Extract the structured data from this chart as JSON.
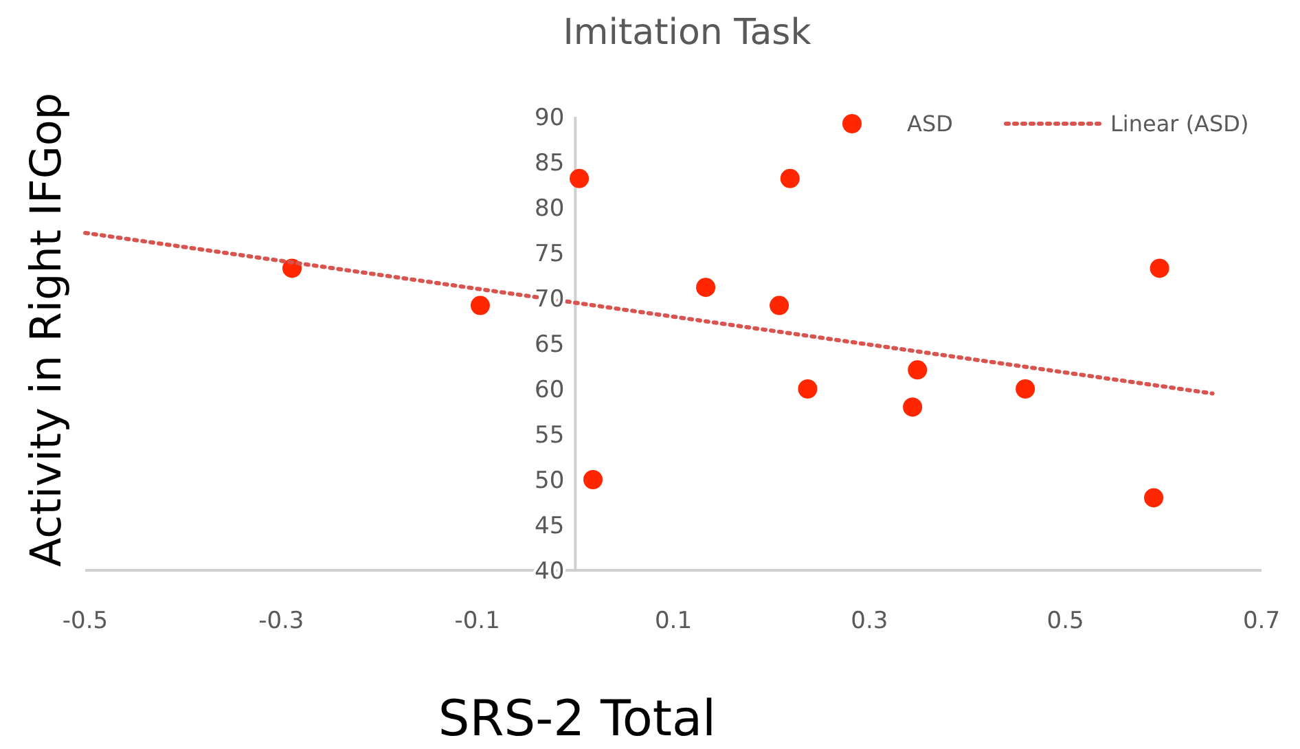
{
  "chart_data": {
    "type": "scatter",
    "title": "Imitation Task",
    "xlabel": "SRS-2 Total",
    "ylabel": "Activity in Right IFGop",
    "xlim": [
      -0.5,
      0.7
    ],
    "xticks": [
      -0.5,
      -0.3,
      -0.1,
      0.1,
      0.3,
      0.5,
      0.7
    ],
    "ylim": [
      40,
      90
    ],
    "yticks": [
      40,
      45,
      50,
      55,
      60,
      65,
      70,
      75,
      80,
      85,
      90
    ],
    "legend": "top right",
    "grid": false,
    "series": [
      {
        "name": "ASD",
        "color": "#ff2600",
        "marker": "circle",
        "x": [
          -0.289,
          -0.097,
          0.004,
          0.018,
          0.133,
          0.208,
          0.219,
          0.237,
          0.349,
          0.344,
          0.459,
          0.59,
          0.596
        ],
        "values": [
          73.3,
          69.2,
          83.2,
          50,
          71.2,
          69.2,
          83.2,
          60,
          62.1,
          58,
          60,
          48,
          73.3
        ]
      },
      {
        "name": "Linear (ASD)",
        "type": "line",
        "color": "#d9534f",
        "line_style": "dotted",
        "marker": "none",
        "x": [
          -0.5,
          0.65
        ],
        "values": [
          77.2,
          59.5
        ]
      }
    ]
  }
}
